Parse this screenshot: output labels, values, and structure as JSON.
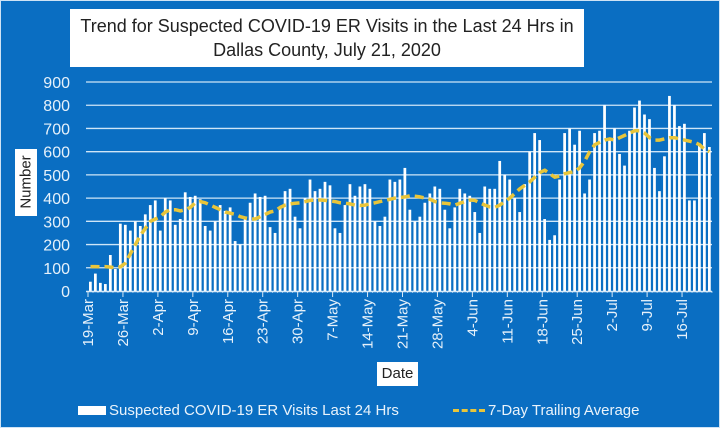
{
  "chart_data": {
    "type": "bar",
    "title": "Trend for Suspected COVID-19 ER Visits in the Last 24 Hrs in Dallas County, July 21, 2020",
    "title_lines": [
      "Trend for Suspected COVID-19 ER Visits in the Last 24 Hrs in",
      "Dallas County, July 21, 2020"
    ],
    "xlabel": "Date",
    "ylabel": "Number",
    "ylim": [
      0,
      900
    ],
    "yticks": [
      0,
      100,
      200,
      300,
      400,
      500,
      600,
      700,
      800,
      900
    ],
    "grid": true,
    "legend_position": "bottom",
    "x_start": "19-Mar",
    "x_end": "21-Jul",
    "xtick_labels": [
      "19-Mar",
      "26-Mar",
      "2-Apr",
      "9-Apr",
      "16-Apr",
      "23-Apr",
      "30-Apr",
      "7-May",
      "14-May",
      "21-May",
      "28-May",
      "4-Jun",
      "11-Jun",
      "18-Jun",
      "25-Jun",
      "2-Jul",
      "9-Jul",
      "16-Jul"
    ],
    "xtick_every_days": 7,
    "series": [
      {
        "name": "Suspected COVID-19 ER Visits Last 24 Hrs",
        "kind": "bar",
        "color": "#ffffff",
        "values": [
          40,
          75,
          35,
          30,
          155,
          95,
          290,
          285,
          260,
          300,
          280,
          330,
          370,
          390,
          260,
          400,
          390,
          285,
          310,
          425,
          405,
          410,
          395,
          280,
          260,
          300,
          370,
          345,
          360,
          215,
          200,
          320,
          380,
          420,
          405,
          410,
          275,
          250,
          360,
          430,
          440,
          320,
          270,
          400,
          480,
          430,
          440,
          470,
          455,
          270,
          250,
          370,
          460,
          410,
          450,
          460,
          440,
          300,
          280,
          320,
          480,
          470,
          480,
          530,
          350,
          300,
          320,
          380,
          420,
          450,
          440,
          350,
          270,
          360,
          440,
          420,
          410,
          340,
          250,
          450,
          440,
          440,
          560,
          500,
          480,
          400,
          340,
          460,
          600,
          680,
          650,
          310,
          220,
          240,
          480,
          680,
          700,
          630,
          690,
          420,
          480,
          680,
          690,
          800,
          650,
          700,
          590,
          540,
          690,
          790,
          820,
          760,
          740,
          530,
          430,
          580,
          840,
          800,
          710,
          720,
          390,
          390,
          630,
          680,
          620
        ],
        "approximate": true
      },
      {
        "name": "7-Day Trailing Average",
        "kind": "line",
        "style": "dashed",
        "color": "#e8c53a",
        "values": [
          105,
          105,
          104,
          105,
          103,
          100,
          104,
          120,
          160,
          200,
          240,
          270,
          300,
          310,
          320,
          340,
          350,
          350,
          345,
          350,
          360,
          380,
          385,
          380,
          370,
          360,
          350,
          340,
          335,
          330,
          320,
          315,
          310,
          310,
          320,
          330,
          340,
          345,
          360,
          370,
          375,
          378,
          380,
          385,
          390,
          392,
          392,
          390,
          388,
          385,
          380,
          378,
          375,
          370,
          368,
          370,
          375,
          380,
          385,
          390,
          395,
          400,
          402,
          405,
          410,
          408,
          405,
          400,
          395,
          385,
          380,
          378,
          375,
          370,
          378,
          385,
          392,
          390,
          380,
          370,
          362,
          360,
          370,
          385,
          400,
          420,
          440,
          455,
          470,
          490,
          510,
          520,
          505,
          490,
          495,
          505,
          510,
          515,
          530,
          560,
          600,
          630,
          640,
          650,
          655,
          650,
          660,
          670,
          680,
          690,
          690,
          680,
          660,
          650,
          650,
          655,
          660,
          660,
          655,
          650,
          645,
          640,
          630,
          610,
          600
        ],
        "approximate": true
      }
    ]
  },
  "legend": {
    "bar_label": "Suspected COVID-19 ER Visits Last 24 Hrs",
    "line_label": "7-Day Trailing Average"
  }
}
